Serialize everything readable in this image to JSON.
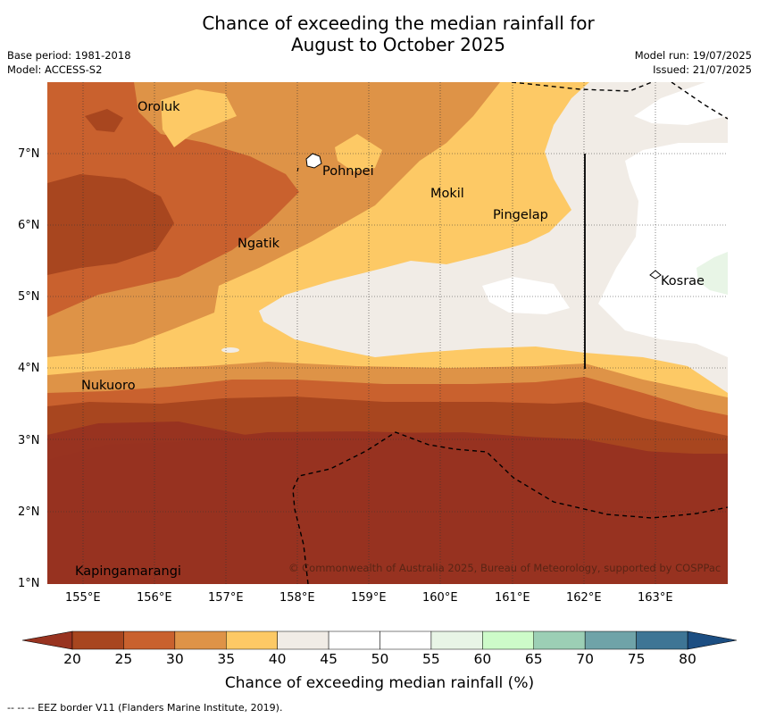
{
  "title": {
    "line1": "Chance of exceeding the median rainfall for",
    "line2": "August to October 2025"
  },
  "meta": {
    "base_period": "Base period: 1981-2018",
    "model": "Model: ACCESS-S2",
    "model_run": "Model run: 19/07/2025",
    "issued": "Issued: 21/07/2025"
  },
  "map": {
    "lat_range": [
      1,
      8
    ],
    "lon_range": [
      154.5,
      164
    ],
    "y_ticks": [
      "1°N",
      "2°N",
      "3°N",
      "4°N",
      "5°N",
      "6°N",
      "7°N"
    ],
    "x_ticks": [
      "155°E",
      "156°E",
      "157°E",
      "158°E",
      "159°E",
      "160°E",
      "161°E",
      "162°E",
      "163°E"
    ],
    "places": [
      {
        "name": "Oroluk",
        "lon": 155.7,
        "lat": 7.6
      },
      {
        "name": "Pohnpei",
        "lon": 158.2,
        "lat": 6.9
      },
      {
        "name": "Mokil",
        "lon": 159.8,
        "lat": 6.7
      },
      {
        "name": "Pingelap",
        "lon": 160.7,
        "lat": 6.2
      },
      {
        "name": "Ngatik",
        "lon": 157.0,
        "lat": 5.8
      },
      {
        "name": "Kosrae",
        "lon": 163.0,
        "lat": 5.3
      },
      {
        "name": "Nukuoro",
        "lon": 154.8,
        "lat": 3.8
      },
      {
        "name": "Kapingamarangi",
        "lon": 154.8,
        "lat": 1.1
      }
    ],
    "copyright": "© Commonwealth of Australia 2025, Bureau of Meteorology, supported by COSPPac"
  },
  "colorbar": {
    "label": "Chance of exceeding median rainfall (%)",
    "ticks": [
      "20",
      "25",
      "30",
      "35",
      "40",
      "45",
      "50",
      "55",
      "60",
      "65",
      "70",
      "75",
      "80"
    ],
    "colors": [
      "#a8461f",
      "#c9612e",
      "#de9347",
      "#fdc965",
      "#f1ece6",
      "#ffffff",
      "#ffffff",
      "#e8f5e6",
      "#cdfbc9",
      "#9ccfb5",
      "#6fa3a8",
      "#3e7595"
    ],
    "under_color": "#983320",
    "over_color": "#1c4e82"
  },
  "footer": "-- -- -- EEZ border V11 (Flanders Marine Institute, 2019)."
}
